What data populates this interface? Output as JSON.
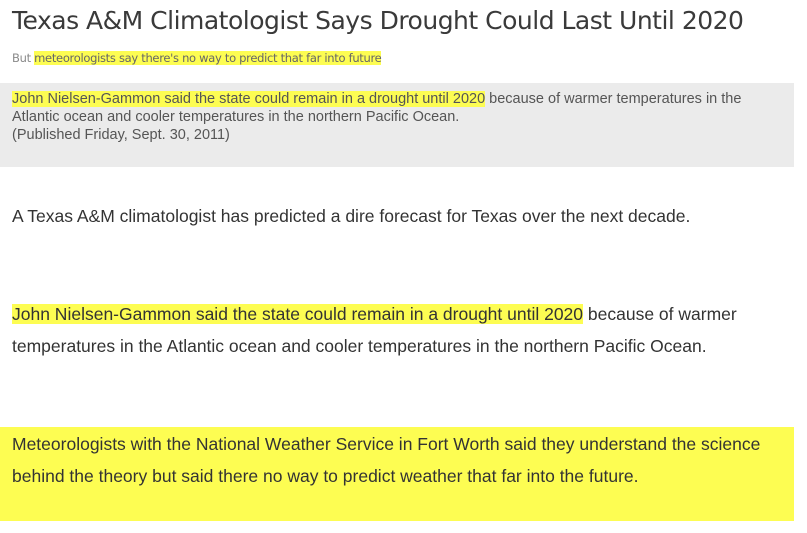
{
  "article": {
    "headline": "Texas A&M Climatologist Says Drought Could Last Until 2020",
    "subhead": {
      "lead": "But ",
      "highlighted": "meteorologists say there's no way to predict that far into future"
    },
    "caption": {
      "highlighted": "John Nielsen-Gammon said the state could remain in a drought until 2020",
      "rest": " because of warmer temperatures in the Atlantic ocean and cooler temperatures in the northern Pacific Ocean.",
      "published": "(Published Friday, Sept. 30, 2011)"
    },
    "paragraphs": {
      "p1": "A Texas A&M climatologist has predicted a dire forecast for Texas over the next decade.",
      "p2_highlighted": "John Nielsen-Gammon said the state could remain in a drought until 2020",
      "p2_rest": " because of warmer temperatures in the Atlantic ocean and cooler temperatures in the northern Pacific Ocean.",
      "p3": "Meteorologists with the National Weather Service in Fort Worth said they understand the science behind the theory but said there no way to predict weather that far into the future."
    }
  },
  "colors": {
    "highlight": "#fdfd52",
    "caption_background": "#ebebeb",
    "text": "#333333"
  }
}
